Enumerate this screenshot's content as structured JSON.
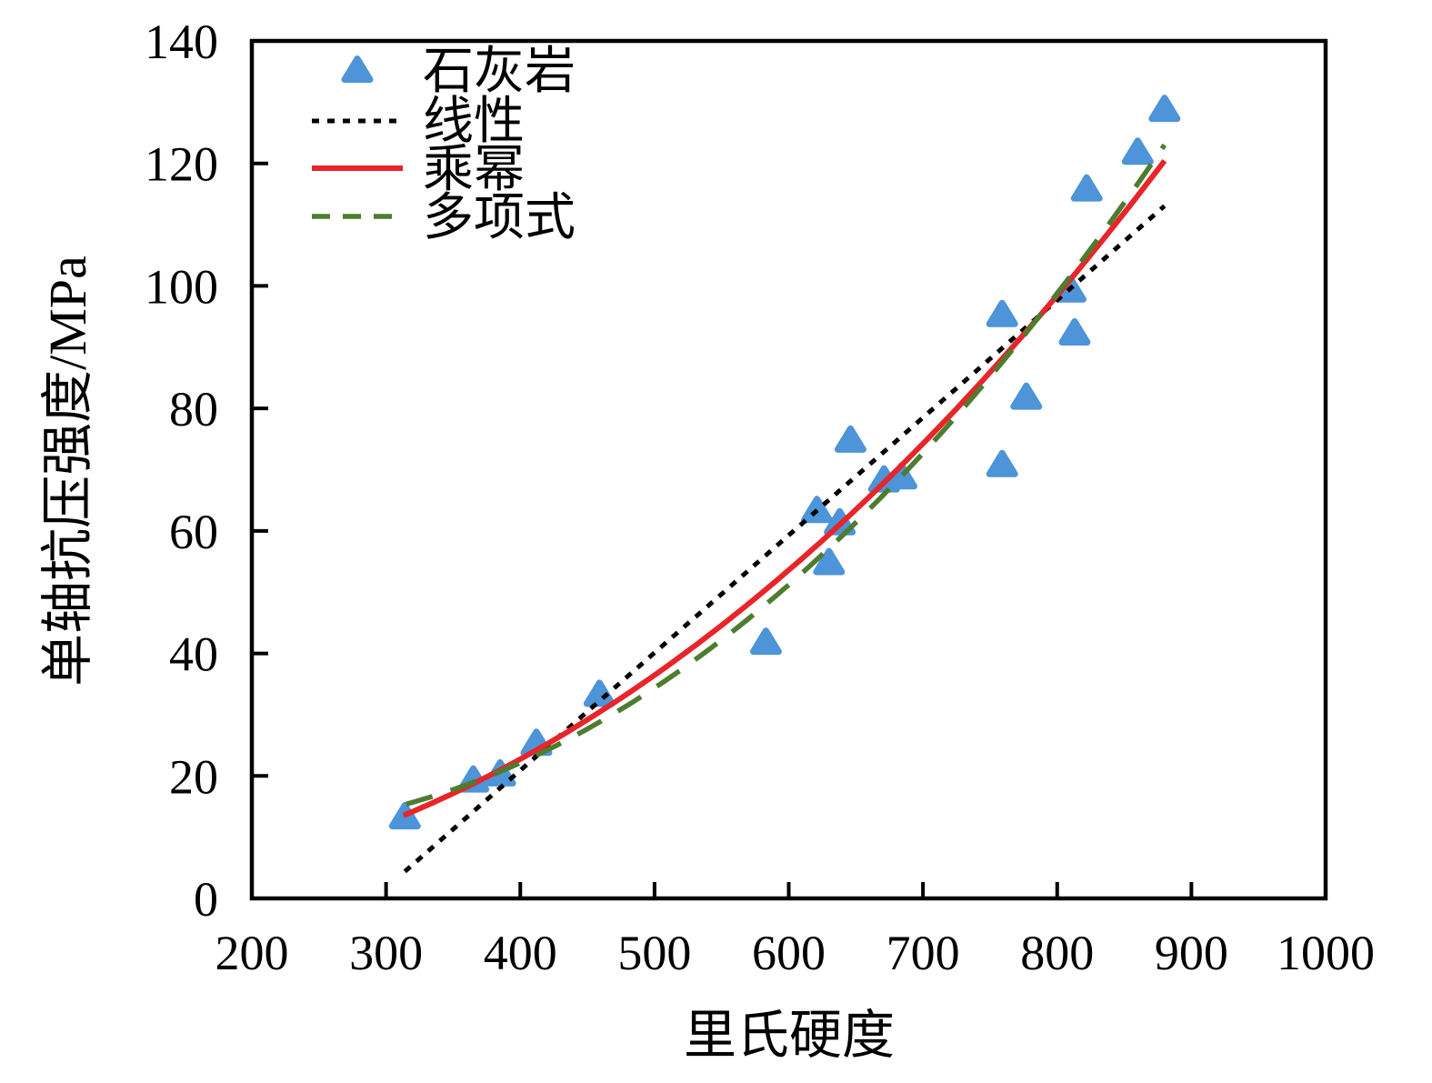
{
  "chart_data": {
    "type": "scatter",
    "title": "",
    "xlabel": "里氏硬度",
    "ylabel": "单轴抗压强度/MPa",
    "xlim": [
      200,
      1000
    ],
    "ylim": [
      0,
      140
    ],
    "x_ticks": [
      200,
      300,
      400,
      500,
      600,
      700,
      800,
      900,
      1000
    ],
    "y_ticks": [
      0,
      20,
      40,
      60,
      80,
      100,
      120,
      140
    ],
    "grid": false,
    "legend_position": "top-left-inside",
    "series": [
      {
        "name": "石灰岩",
        "kind": "scatter",
        "marker": "triangle",
        "color": "#4d94d8",
        "points": [
          [
            314,
            13.5
          ],
          [
            365,
            19.5
          ],
          [
            385,
            20.5
          ],
          [
            412,
            25.5
          ],
          [
            459,
            33.5
          ],
          [
            583,
            42
          ],
          [
            621,
            63.5
          ],
          [
            630,
            55
          ],
          [
            638,
            61.5
          ],
          [
            646,
            75
          ],
          [
            671,
            68.5
          ],
          [
            684,
            69
          ],
          [
            759,
            95.5
          ],
          [
            759,
            71
          ],
          [
            777,
            82
          ],
          [
            810,
            99.5
          ],
          [
            813,
            92.5
          ],
          [
            822,
            116
          ],
          [
            860,
            122
          ],
          [
            880,
            129
          ]
        ]
      },
      {
        "name": "线性",
        "kind": "line",
        "style": "dotted",
        "color": "#000000",
        "fit": {
          "kind": "linear",
          "slope": 0.192,
          "intercept": -55.9
        },
        "x_range": [
          314,
          880
        ]
      },
      {
        "name": "乘幂",
        "kind": "line",
        "style": "solid",
        "color": "#e8252a",
        "fit": {
          "kind": "power",
          "coef": 7.18e-05,
          "exponent": 2.114
        },
        "x_range": [
          313,
          880
        ]
      },
      {
        "name": "多项式",
        "kind": "line",
        "style": "dashed",
        "color": "#4d7d2e",
        "fit": {
          "kind": "poly2",
          "a": 0.0002315,
          "b": -0.08617,
          "c": 19.57
        },
        "x_range": [
          315,
          880
        ]
      }
    ]
  }
}
